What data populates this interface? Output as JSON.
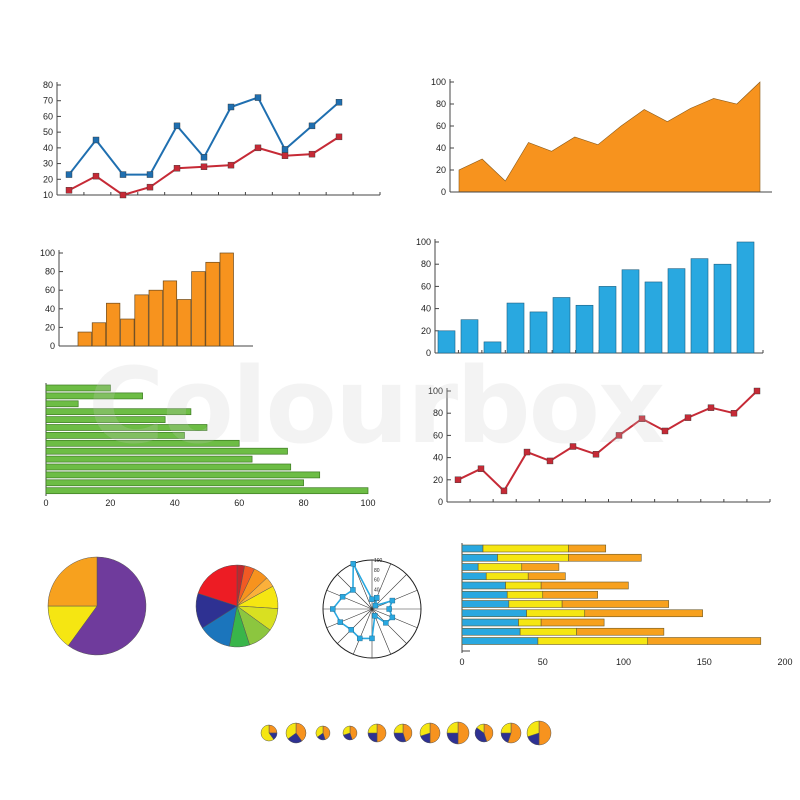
{
  "watermark": "Colourbox",
  "colors": {
    "axis": "#444444",
    "blue_line": "#1f6fb0",
    "red_line": "#c62a36",
    "orange": "#f7931e",
    "blue_bar": "#29a8e0",
    "green": "#6dbd45",
    "purple": "#6f3b9c",
    "yellow": "#f5e612",
    "dark_blue": "#2e3192"
  },
  "chart_data": [
    {
      "id": "line-two-series",
      "type": "line",
      "ylim": [
        10,
        80
      ],
      "yticks": [
        10,
        20,
        30,
        40,
        50,
        60,
        70,
        80
      ],
      "grid": false,
      "series": [
        {
          "color": "#1f6fb0",
          "values": [
            23,
            45,
            23,
            23,
            54,
            34,
            66,
            72,
            39,
            54,
            69
          ]
        },
        {
          "color": "#c62a36",
          "values": [
            13,
            22,
            10,
            15,
            27,
            28,
            29,
            40,
            35,
            36,
            47
          ]
        }
      ]
    },
    {
      "id": "area",
      "type": "area",
      "ylim": [
        0,
        100
      ],
      "yticks": [
        0,
        20,
        40,
        60,
        80,
        100
      ],
      "grid": false,
      "values": [
        20,
        30,
        10,
        45,
        37,
        50,
        43,
        60,
        75,
        64,
        76,
        85,
        80,
        100
      ]
    },
    {
      "id": "orange-bars",
      "type": "bar",
      "ylim": [
        0,
        100
      ],
      "yticks": [
        0,
        20,
        40,
        60,
        80,
        100
      ],
      "grid": false,
      "values": [
        15,
        25,
        46,
        29,
        55,
        60,
        70,
        50,
        80,
        90,
        100
      ]
    },
    {
      "id": "blue-bars",
      "type": "bar",
      "ylim": [
        0,
        100
      ],
      "yticks": [
        0,
        20,
        40,
        60,
        80,
        100
      ],
      "grid": false,
      "values": [
        20,
        30,
        10,
        45,
        37,
        50,
        43,
        60,
        75,
        64,
        76,
        85,
        80,
        100
      ]
    },
    {
      "id": "green-hbars",
      "type": "bar",
      "orientation": "horizontal",
      "xlim": [
        0,
        100
      ],
      "xticks": [
        0,
        20,
        40,
        60,
        80,
        100
      ],
      "grid": false,
      "values": [
        20,
        30,
        10,
        45,
        37,
        50,
        43,
        60,
        75,
        64,
        76,
        85,
        80,
        100
      ]
    },
    {
      "id": "red-line",
      "type": "line",
      "ylim": [
        0,
        100
      ],
      "yticks": [
        0,
        20,
        40,
        60,
        80,
        100
      ],
      "grid": false,
      "values": [
        20,
        30,
        10,
        45,
        37,
        50,
        43,
        60,
        75,
        64,
        76,
        85,
        80,
        100
      ]
    },
    {
      "id": "pie-three",
      "type": "pie",
      "slices": [
        {
          "value": 60,
          "color": "#6f3b9c"
        },
        {
          "value": 15,
          "color": "#f5e612"
        },
        {
          "value": 25,
          "color": "#f7a11e"
        }
      ]
    },
    {
      "id": "pie-rainbow",
      "type": "pie",
      "slices": [
        {
          "value": 3,
          "color": "#c1272d"
        },
        {
          "value": 4,
          "color": "#f15a24"
        },
        {
          "value": 6,
          "color": "#f7931e"
        },
        {
          "value": 4,
          "color": "#fbb03b"
        },
        {
          "value": 9,
          "color": "#f5e612"
        },
        {
          "value": 9,
          "color": "#d9e021"
        },
        {
          "value": 10,
          "color": "#8cc63f"
        },
        {
          "value": 8,
          "color": "#39b54a"
        },
        {
          "value": 13,
          "color": "#1b75bc"
        },
        {
          "value": 14,
          "color": "#2e3192"
        },
        {
          "value": 20,
          "color": "#ed1c24"
        }
      ]
    },
    {
      "id": "radar",
      "type": "radar",
      "rlim": [
        0,
        100
      ],
      "rticks": [
        20,
        40,
        60,
        80,
        100
      ],
      "values": [
        20,
        25,
        10,
        45,
        35,
        45,
        40,
        15,
        60,
        65,
        60,
        70,
        80,
        65,
        55,
        100
      ]
    },
    {
      "id": "stacked-hbars",
      "type": "bar",
      "orientation": "horizontal",
      "stacked": true,
      "xlim": [
        0,
        200
      ],
      "xticks": [
        0,
        50,
        100,
        150,
        200
      ],
      "grid": false,
      "series": [
        {
          "color": "#29a8e0",
          "values": [
            13,
            22,
            10,
            15,
            27,
            28,
            29,
            40,
            35,
            36,
            47
          ]
        },
        {
          "color": "#f5e612",
          "values": [
            53,
            44,
            27,
            26,
            22,
            22,
            33,
            36,
            14,
            35,
            68
          ]
        },
        {
          "color": "#f7a11e",
          "values": [
            23,
            45,
            23,
            23,
            54,
            34,
            66,
            73,
            39,
            54,
            70
          ]
        }
      ]
    },
    {
      "id": "mini-pies",
      "type": "pie",
      "multiple": true,
      "pies": [
        [
          {
            "value": 25,
            "color": "#f7931e"
          },
          {
            "value": 15,
            "color": "#2e3192"
          },
          {
            "value": 60,
            "color": "#f5e612"
          }
        ],
        [
          {
            "value": 40,
            "color": "#f7931e"
          },
          {
            "value": 25,
            "color": "#2e3192"
          },
          {
            "value": 35,
            "color": "#f5e612"
          }
        ],
        [
          {
            "value": 45,
            "color": "#f7931e"
          },
          {
            "value": 20,
            "color": "#2e3192"
          },
          {
            "value": 35,
            "color": "#f5e612"
          }
        ],
        [
          {
            "value": 45,
            "color": "#f7931e"
          },
          {
            "value": 25,
            "color": "#2e3192"
          },
          {
            "value": 30,
            "color": "#f5e612"
          }
        ],
        [
          {
            "value": 50,
            "color": "#f7931e"
          },
          {
            "value": 25,
            "color": "#2e3192"
          },
          {
            "value": 25,
            "color": "#f5e612"
          }
        ],
        [
          {
            "value": 45,
            "color": "#f7931e"
          },
          {
            "value": 30,
            "color": "#2e3192"
          },
          {
            "value": 25,
            "color": "#f5e612"
          }
        ],
        [
          {
            "value": 50,
            "color": "#f7931e"
          },
          {
            "value": 20,
            "color": "#2e3192"
          },
          {
            "value": 30,
            "color": "#f5e612"
          }
        ],
        [
          {
            "value": 50,
            "color": "#f7931e"
          },
          {
            "value": 25,
            "color": "#2e3192"
          },
          {
            "value": 25,
            "color": "#f5e612"
          }
        ],
        [
          {
            "value": 45,
            "color": "#f7931e"
          },
          {
            "value": 40,
            "color": "#2e3192"
          },
          {
            "value": 15,
            "color": "#f5e612"
          }
        ],
        [
          {
            "value": 55,
            "color": "#f7931e"
          },
          {
            "value": 20,
            "color": "#2e3192"
          },
          {
            "value": 25,
            "color": "#f5e612"
          }
        ],
        [
          {
            "value": 50,
            "color": "#f7931e"
          },
          {
            "value": 20,
            "color": "#2e3192"
          },
          {
            "value": 30,
            "color": "#f5e612"
          }
        ]
      ]
    }
  ]
}
